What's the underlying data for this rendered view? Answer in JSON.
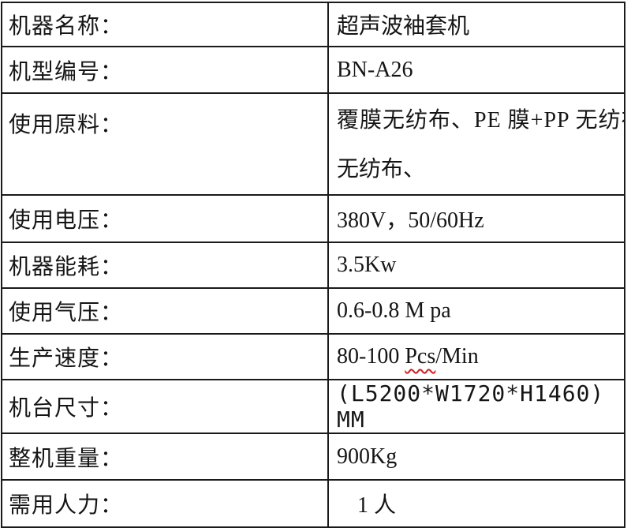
{
  "page": {
    "background_color": "#ffffff",
    "text_color": "#151515",
    "border_color": "#1a1a1a",
    "spellcheck_underline_color": "#cc1f1f"
  },
  "table": {
    "rows": [
      {
        "label": "机器名称：",
        "value": "超声波袖套机"
      },
      {
        "label": "机型编号：",
        "value": "BN-A26"
      },
      {
        "label": "使用原料：",
        "value_line1": "覆膜无纺布、PE 膜+PP 无纺布",
        "value_line2": "无纺布、"
      },
      {
        "label": "使用电压：",
        "value": "380V，50/60Hz"
      },
      {
        "label": "机器能耗：",
        "value": "3.5Kw"
      },
      {
        "label": "使用气压：",
        "value": "0.6-0.8 M pa"
      },
      {
        "label": "生产速度：",
        "value_prefix": "80-100 ",
        "value_flagged": "Pcs",
        "value_suffix": "/Min"
      },
      {
        "label": "机台尺寸：",
        "value": "(L5200*W1720*H1460) MM"
      },
      {
        "label": "整机重量：",
        "value": "900Kg"
      },
      {
        "label": "需用人力：",
        "value": "1 人"
      }
    ]
  }
}
